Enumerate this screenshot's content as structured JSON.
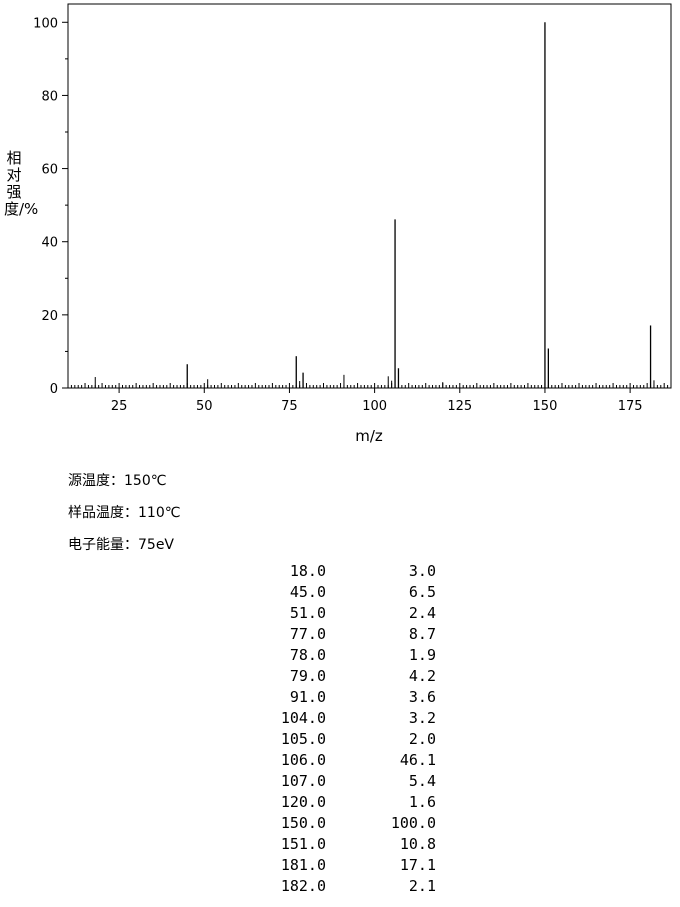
{
  "chart_data": {
    "type": "bar",
    "xlabel": "m/z",
    "ylabel": "相对强度/%",
    "xlim": [
      10,
      187
    ],
    "ylim": [
      0,
      105
    ],
    "x_ticks": [
      25,
      50,
      75,
      100,
      125,
      150,
      175
    ],
    "y_ticks": [
      0,
      20,
      40,
      60,
      80,
      100
    ],
    "peaks": [
      {
        "mz": 18.0,
        "intensity": 3.0
      },
      {
        "mz": 45.0,
        "intensity": 6.5
      },
      {
        "mz": 51.0,
        "intensity": 2.4
      },
      {
        "mz": 77.0,
        "intensity": 8.7
      },
      {
        "mz": 78.0,
        "intensity": 1.9
      },
      {
        "mz": 79.0,
        "intensity": 4.2
      },
      {
        "mz": 91.0,
        "intensity": 3.6
      },
      {
        "mz": 104.0,
        "intensity": 3.2
      },
      {
        "mz": 105.0,
        "intensity": 2.0
      },
      {
        "mz": 106.0,
        "intensity": 46.1
      },
      {
        "mz": 107.0,
        "intensity": 5.4
      },
      {
        "mz": 120.0,
        "intensity": 1.6
      },
      {
        "mz": 150.0,
        "intensity": 100.0
      },
      {
        "mz": 151.0,
        "intensity": 10.8
      },
      {
        "mz": 181.0,
        "intensity": 17.1
      },
      {
        "mz": 182.0,
        "intensity": 2.1
      }
    ]
  },
  "conditions": {
    "source_temp": "源温度：150℃",
    "sample_temp": "样品温度：110℃",
    "electron_energy": "电子能量：75eV"
  },
  "peak_table": [
    {
      "mz": "18.0",
      "intensity": "3.0"
    },
    {
      "mz": "45.0",
      "intensity": "6.5"
    },
    {
      "mz": "51.0",
      "intensity": "2.4"
    },
    {
      "mz": "77.0",
      "intensity": "8.7"
    },
    {
      "mz": "78.0",
      "intensity": "1.9"
    },
    {
      "mz": "79.0",
      "intensity": "4.2"
    },
    {
      "mz": "91.0",
      "intensity": "3.6"
    },
    {
      "mz": "104.0",
      "intensity": "3.2"
    },
    {
      "mz": "105.0",
      "intensity": "2.0"
    },
    {
      "mz": "106.0",
      "intensity": "46.1"
    },
    {
      "mz": "107.0",
      "intensity": "5.4"
    },
    {
      "mz": "120.0",
      "intensity": "1.6"
    },
    {
      "mz": "150.0",
      "intensity": "100.0"
    },
    {
      "mz": "151.0",
      "intensity": "10.8"
    },
    {
      "mz": "181.0",
      "intensity": "17.1"
    },
    {
      "mz": "182.0",
      "intensity": "2.1"
    }
  ]
}
